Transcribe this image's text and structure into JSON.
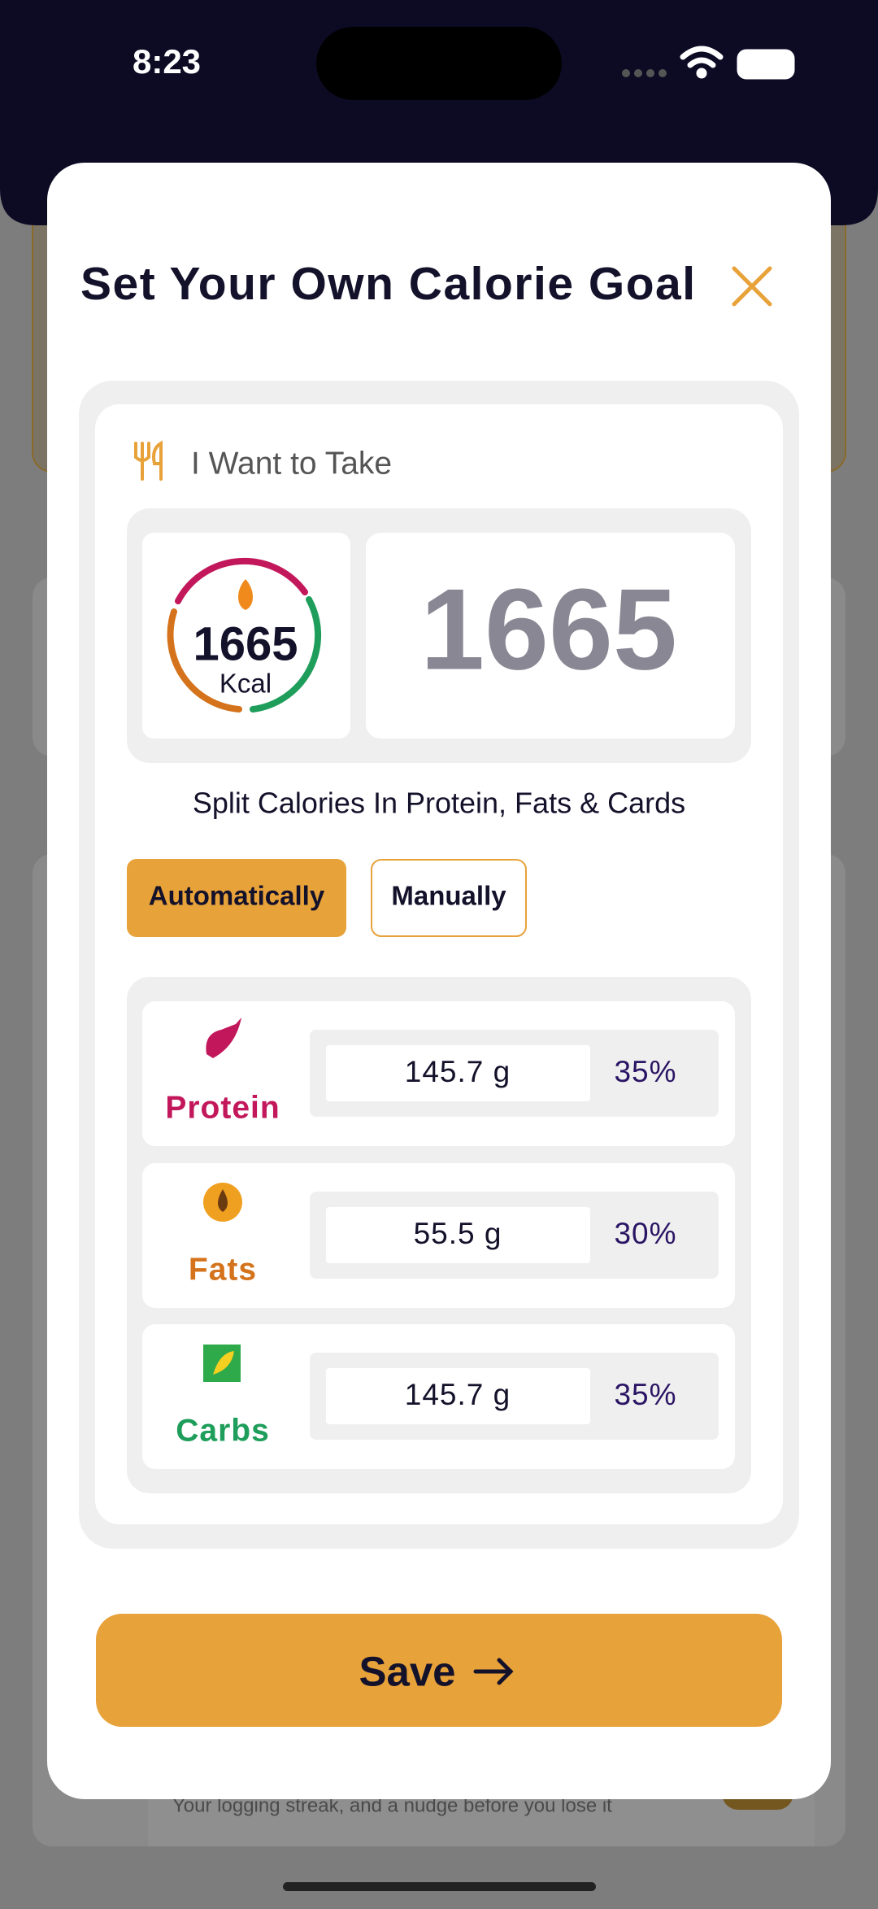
{
  "status_bar": {
    "time": "8:23"
  },
  "background": {
    "hint": "Your logging streak, and a nudge before you lose it"
  },
  "modal": {
    "title": "Set Your Own Calorie Goal",
    "section_label": "I Want to Take",
    "ring": {
      "value": "1665",
      "unit": "Kcal"
    },
    "calories": "1665",
    "split_label": "Split Calories In Protein, Fats & Cards",
    "modes": [
      "Automatically",
      "Manually"
    ],
    "macros": [
      {
        "name": "Protein",
        "amount": "145.7 g",
        "percent": "35%"
      },
      {
        "name": "Fats",
        "amount": "55.5 g",
        "percent": "30%"
      },
      {
        "name": "Carbs",
        "amount": "145.7 g",
        "percent": "35%"
      }
    ],
    "save": "Save"
  }
}
